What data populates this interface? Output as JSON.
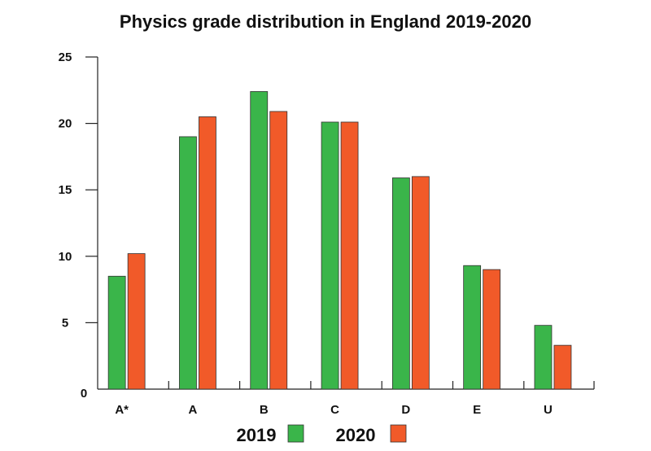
{
  "chart_data": {
    "type": "bar",
    "title": "Physics grade distribution in England 2019-2020",
    "xlabel": "",
    "ylabel": "",
    "categories": [
      "A*",
      "A",
      "B",
      "C",
      "D",
      "E",
      "U"
    ],
    "series": [
      {
        "name": "2019",
        "color": "#3ab54a",
        "values": [
          8.5,
          19.0,
          22.4,
          20.1,
          15.9,
          9.3,
          4.8
        ]
      },
      {
        "name": "2020",
        "color": "#f15a29",
        "values": [
          10.2,
          20.5,
          20.9,
          20.1,
          16.0,
          9.0,
          3.3
        ]
      }
    ],
    "ylim": [
      0,
      25
    ],
    "yticks": [
      "0",
      "5",
      "10",
      "15",
      "20",
      "25"
    ],
    "ytick_values": [
      0,
      5,
      10,
      15,
      20,
      25
    ],
    "grid": false,
    "legend_position": "bottom-center"
  }
}
